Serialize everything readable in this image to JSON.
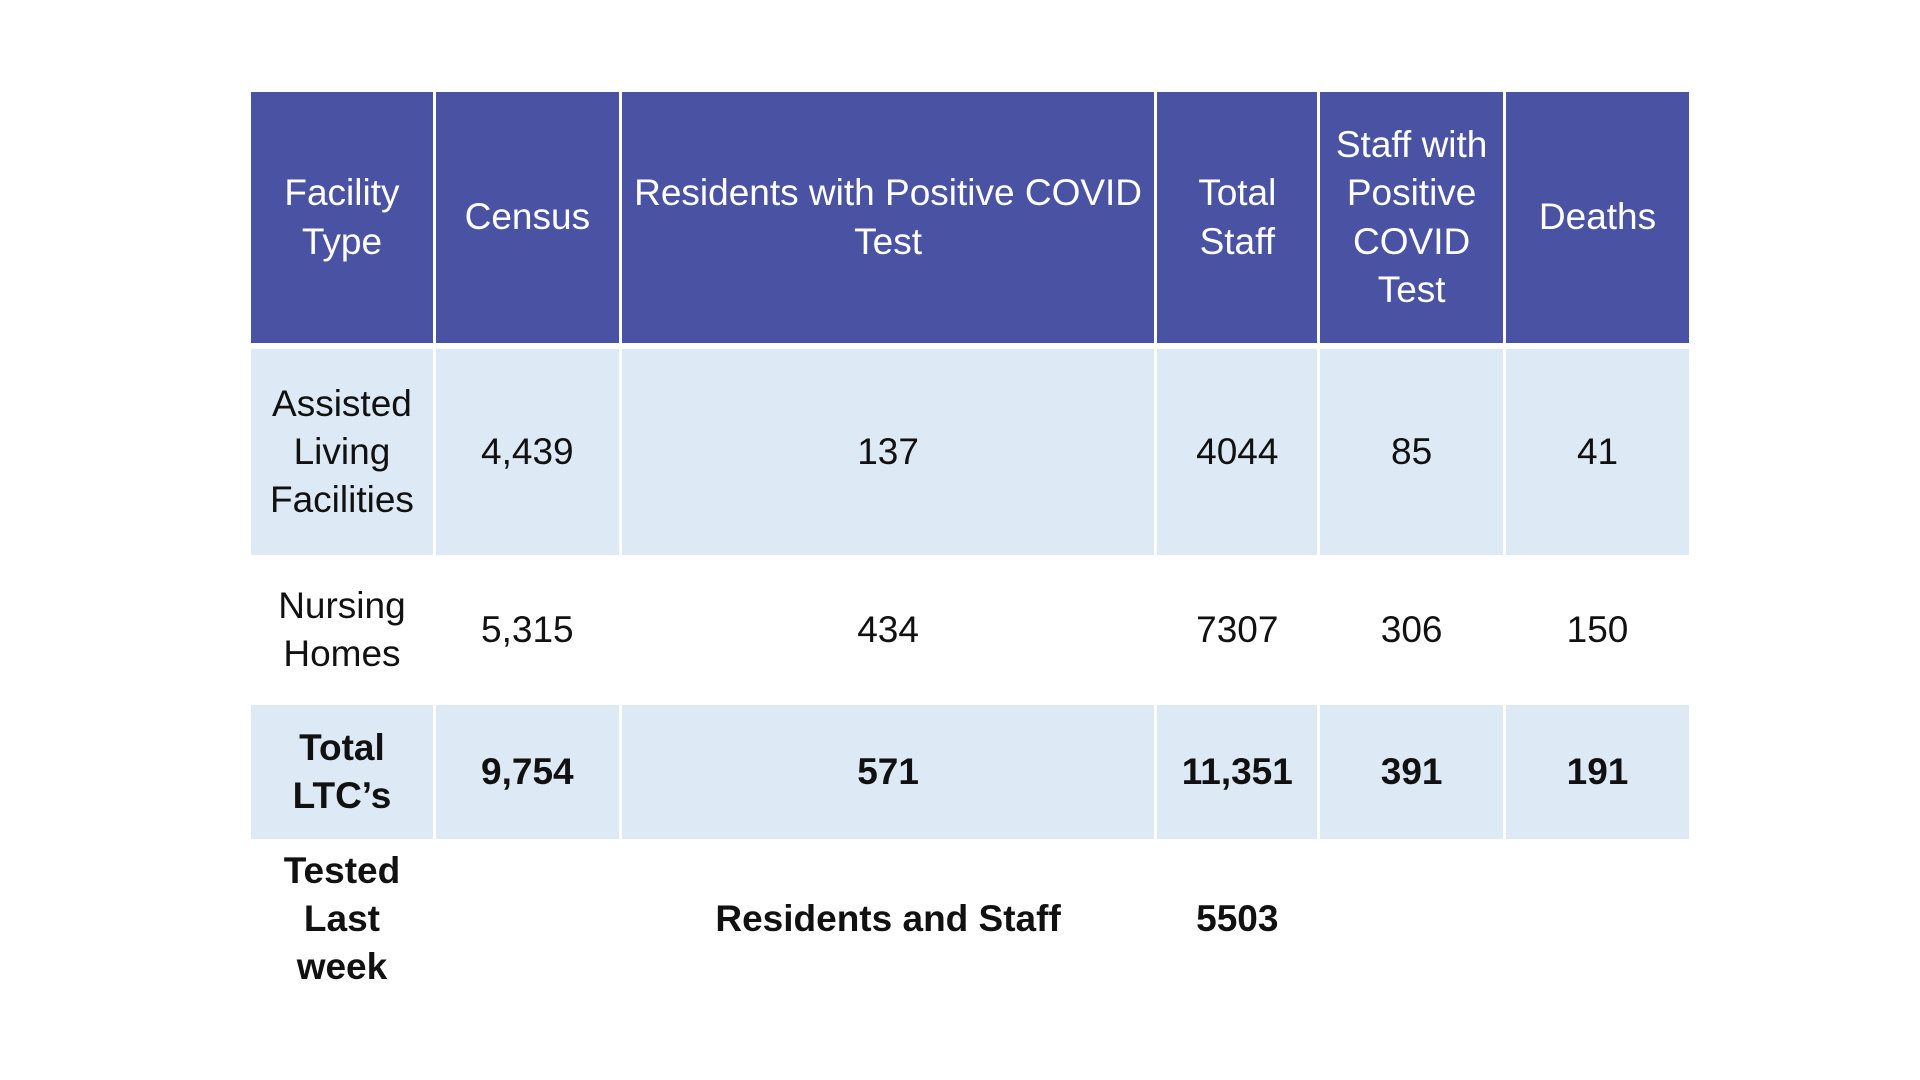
{
  "table": {
    "headers": [
      "Facility Type",
      "Census",
      "Residents with Positive COVID Test",
      "Total Staff",
      "Staff with Positive COVID Test",
      "Deaths"
    ],
    "rows": [
      {
        "facility_type": "Assisted Living Facilities",
        "census": "4,439",
        "residents_positive": "137",
        "total_staff": "4044",
        "staff_positive": "85",
        "deaths": "41"
      },
      {
        "facility_type": "Nursing Homes",
        "census": "5,315",
        "residents_positive": "434",
        "total_staff": "7307",
        "staff_positive": "306",
        "deaths": "150"
      },
      {
        "facility_type": "Total LTC’s",
        "census": "9,754",
        "residents_positive": "571",
        "total_staff": "11,351",
        "staff_positive": "391",
        "deaths": "191"
      }
    ],
    "tested": {
      "label": "Tested Last week",
      "description": "Residents and Staff",
      "value": "5503"
    }
  },
  "colors": {
    "header_background": "#4a53a3",
    "header_text": "#ffffff",
    "shaded_row": "#dde9f5"
  }
}
